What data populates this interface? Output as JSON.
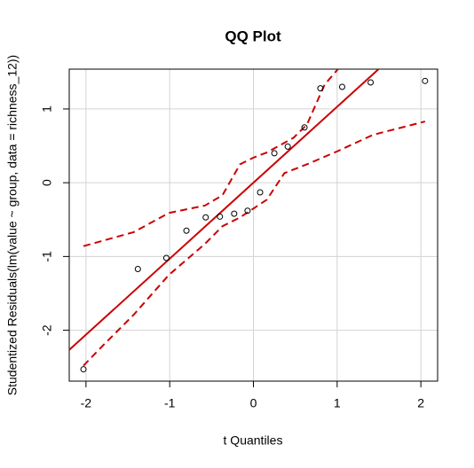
{
  "chart_data": {
    "type": "scatter",
    "title": "QQ Plot",
    "xlabel": "t Quantiles",
    "ylabel": "Studentized Residuals(lm(value ~ group, data = richness_12))",
    "xlim": [
      -2.2,
      2.2
    ],
    "ylim": [
      -2.69,
      1.54
    ],
    "xticks": [
      -2,
      -1,
      0,
      1,
      2
    ],
    "yticks": [
      -2,
      -1,
      0,
      1
    ],
    "grid": true,
    "points": {
      "color": "#000000",
      "x": [
        -2.03,
        -1.38,
        -1.04,
        -0.8,
        -0.57,
        -0.4,
        -0.23,
        -0.07,
        0.08,
        0.25,
        0.41,
        0.61,
        0.8,
        1.06,
        1.4,
        2.05
      ],
      "y": [
        -2.53,
        -1.17,
        -1.02,
        -0.65,
        -0.47,
        -0.46,
        -0.42,
        -0.38,
        -0.13,
        0.4,
        0.49,
        0.75,
        1.28,
        1.3,
        1.36,
        1.38
      ]
    },
    "reference_line": {
      "intercept": 0,
      "slope": 1.03,
      "color": "#cc0000"
    },
    "envelope_color": "#cc0000",
    "envelope": [
      {
        "x": [
          -2.03,
          -1.43,
          -1.01,
          -0.58,
          -0.37,
          -0.16,
          0,
          0.16,
          0.48,
          0.64,
          0.85,
          1.01
        ],
        "y": [
          -0.86,
          -0.67,
          -0.41,
          -0.31,
          -0.17,
          0.25,
          0.34,
          0.41,
          0.61,
          0.79,
          1.33,
          1.54
        ]
      },
      {
        "x": [
          -2.03,
          -1.8,
          -1.43,
          -1.01,
          -0.58,
          -0.37,
          -0.16,
          0,
          0.16,
          0.37,
          0.64,
          1.01,
          1.43,
          2.05
        ],
        "y": [
          -2.48,
          -2.21,
          -1.79,
          -1.25,
          -0.83,
          -0.59,
          -0.47,
          -0.35,
          -0.23,
          0.13,
          0.25,
          0.43,
          0.65,
          0.83
        ]
      }
    ]
  }
}
